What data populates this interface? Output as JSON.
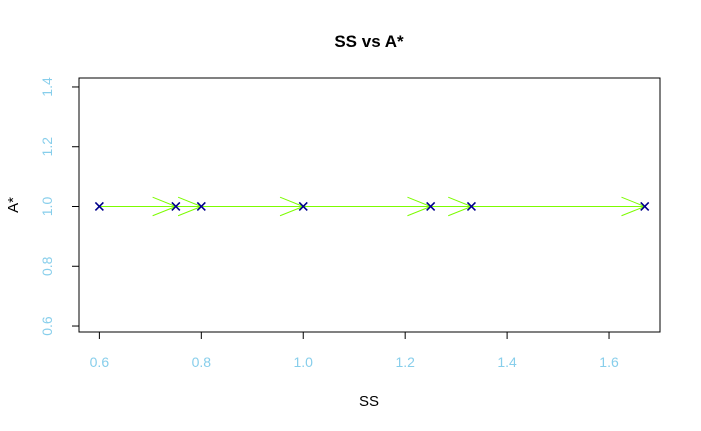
{
  "chart_data": {
    "type": "scatter",
    "title": "SS vs A*",
    "xlabel": "SS",
    "ylabel": "A*",
    "xlim": [
      0.56,
      1.7
    ],
    "ylim": [
      0.58,
      1.43
    ],
    "xticks": [
      "0.6",
      "0.8",
      "1.0",
      "1.2",
      "1.4",
      "1.6"
    ],
    "yticks": [
      "0.6",
      "0.8",
      "1.0",
      "1.2",
      "1.4"
    ],
    "grid": false,
    "tick_label_color": "#87ceeb",
    "points": [
      {
        "x": 0.6,
        "y": 1.0,
        "marker": "x",
        "color": "#00008b"
      },
      {
        "x": 0.75,
        "y": 1.0,
        "marker": "x",
        "color": "#00008b"
      },
      {
        "x": 0.8,
        "y": 1.0,
        "marker": "x",
        "color": "#00008b"
      },
      {
        "x": 1.0,
        "y": 1.0,
        "marker": "x",
        "color": "#00008b"
      },
      {
        "x": 1.25,
        "y": 1.0,
        "marker": "x",
        "color": "#00008b"
      },
      {
        "x": 1.33,
        "y": 1.0,
        "marker": "x",
        "color": "#00008b"
      },
      {
        "x": 1.67,
        "y": 1.0,
        "marker": "x",
        "color": "#00008b"
      }
    ],
    "arrows": [
      {
        "from": [
          0.6,
          1.0
        ],
        "to": [
          0.75,
          1.0
        ],
        "color": "#7cfc00"
      },
      {
        "from": [
          0.75,
          1.0
        ],
        "to": [
          0.8,
          1.0
        ],
        "color": "#7cfc00"
      },
      {
        "from": [
          0.8,
          1.0
        ],
        "to": [
          1.0,
          1.0
        ],
        "color": "#7cfc00"
      },
      {
        "from": [
          1.0,
          1.0
        ],
        "to": [
          1.25,
          1.0
        ],
        "color": "#7cfc00"
      },
      {
        "from": [
          1.25,
          1.0
        ],
        "to": [
          1.33,
          1.0
        ],
        "color": "#7cfc00"
      },
      {
        "from": [
          1.33,
          1.0
        ],
        "to": [
          1.67,
          1.0
        ],
        "color": "#7cfc00"
      }
    ]
  }
}
